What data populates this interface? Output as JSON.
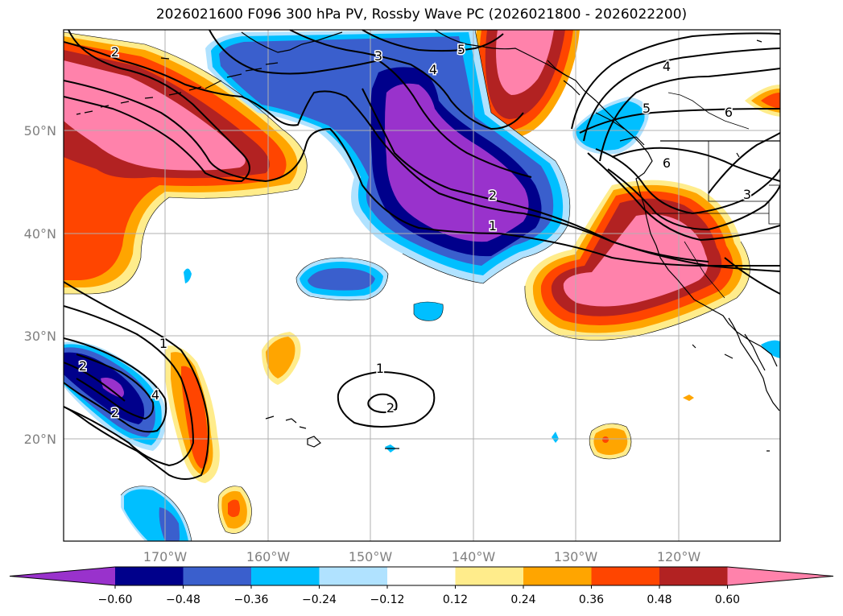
{
  "title": "2026021600 F096 300 hPa PV, Rossby Wave PC (2026021800 - 2026022200)",
  "map": {
    "lat_labels": [
      "50°N",
      "40°N",
      "30°N",
      "20°N"
    ],
    "lon_labels": [
      "170°W",
      "160°W",
      "150°W",
      "140°W",
      "130°W",
      "120°W"
    ],
    "grid_color": "#b0b0b0",
    "tick_label_color": "#808080",
    "contour_color": "#000000",
    "contour_labels": [
      {
        "name": "contour-label-2-west",
        "text": "2"
      },
      {
        "name": "contour-label-3-north",
        "text": "3"
      },
      {
        "name": "contour-label-4-north",
        "text": "4"
      },
      {
        "name": "contour-label-5-north",
        "text": "5"
      },
      {
        "name": "contour-label-2-center",
        "text": "2"
      },
      {
        "name": "contour-label-1-center",
        "text": "1"
      },
      {
        "name": "contour-label-4-northeast",
        "text": "4"
      },
      {
        "name": "contour-label-6-northeast",
        "text": "6"
      },
      {
        "name": "contour-label-5-east",
        "text": "5"
      },
      {
        "name": "contour-label-6-east",
        "text": "6"
      },
      {
        "name": "contour-label-3-east",
        "text": "3"
      },
      {
        "name": "contour-label-1-southwest",
        "text": "1"
      },
      {
        "name": "contour-label-2-southwest",
        "text": "2"
      },
      {
        "name": "contour-label-4-southwest",
        "text": "4"
      },
      {
        "name": "contour-label-2-southwest-b",
        "text": "2"
      },
      {
        "name": "contour-label-1-hawaii",
        "text": "1"
      },
      {
        "name": "contour-label-2-hawaii",
        "text": "2"
      }
    ]
  },
  "colorbar": {
    "levels": [
      "−0.60",
      "−0.48",
      "−0.36",
      "−0.24",
      "−0.12",
      "0.12",
      "0.24",
      "0.36",
      "0.48",
      "0.60"
    ],
    "colors": [
      "#9932CC",
      "#00008B",
      "#3A5FCD",
      "#00BFFF",
      "#B0E2FF",
      "#FFFFFF",
      "#FFEC8B",
      "#FFA500",
      "#FF4500",
      "#B22222",
      "#FF82AB"
    ]
  }
}
